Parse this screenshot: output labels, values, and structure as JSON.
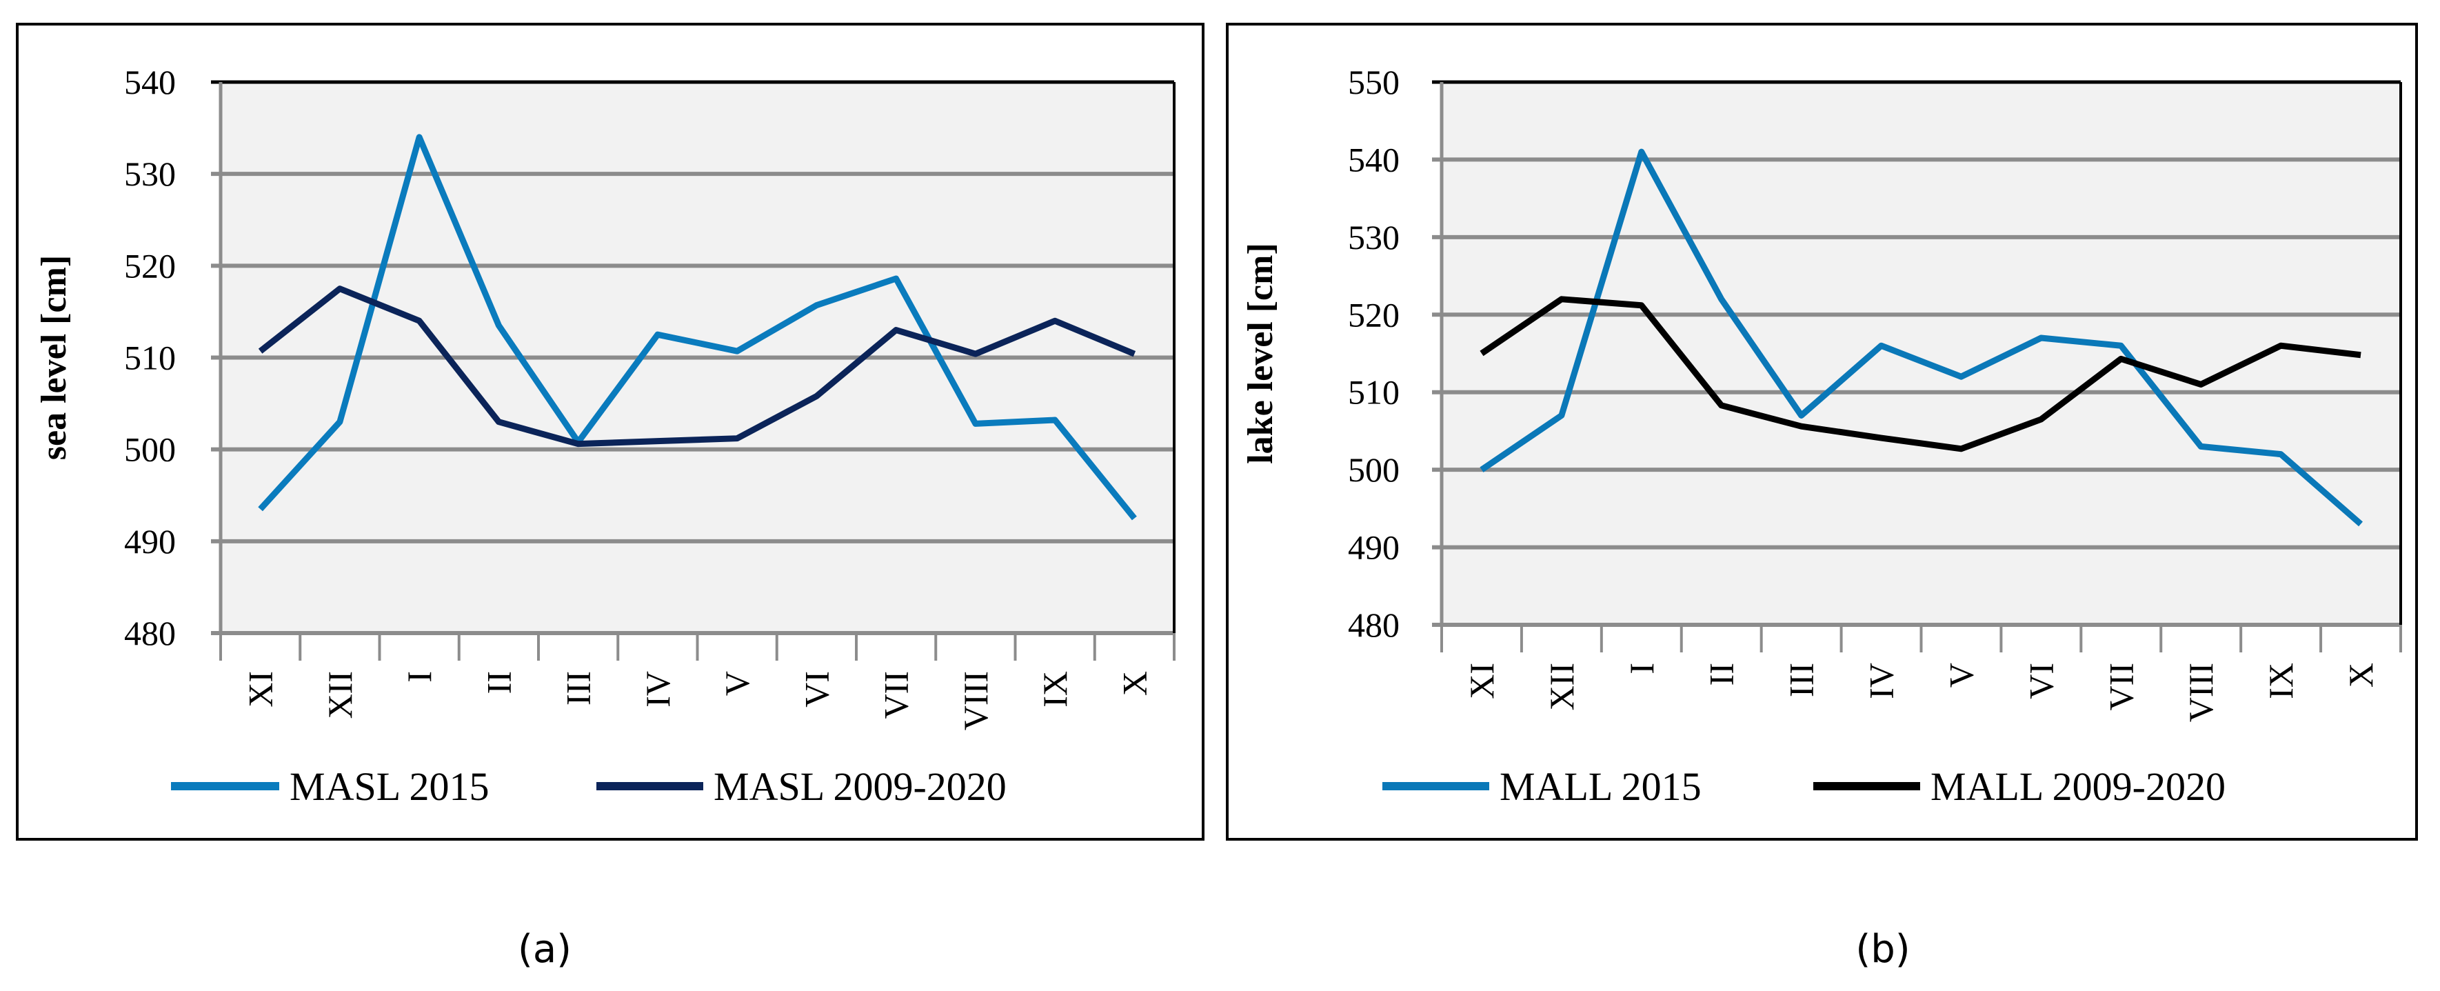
{
  "chart_data": [
    {
      "type": "line",
      "panel": "(a)",
      "categories": [
        "XI",
        "XII",
        "I",
        "II",
        "III",
        "IV",
        "V",
        "VI",
        "VII",
        "VIII",
        "IX",
        "X"
      ],
      "ylabel": "sea level [cm]",
      "ylim": [
        480,
        540
      ],
      "yticks": [
        "480",
        "490",
        "500",
        "510",
        "520",
        "530",
        "540"
      ],
      "grid": true,
      "legend": "bottom",
      "series": [
        {
          "name": "MASL 2015",
          "color": "#0a7bbd",
          "values": [
            493.5,
            503,
            534,
            513.5,
            500.8,
            512.5,
            510.7,
            515.7,
            518.6,
            502.8,
            503.2,
            492.5
          ]
        },
        {
          "name": "MASL 2009-2020",
          "color": "#0b2459",
          "values": [
            510.7,
            517.5,
            514,
            503,
            500.6,
            500.9,
            501.2,
            505.8,
            513,
            510.4,
            514,
            510.4
          ]
        }
      ]
    },
    {
      "type": "line",
      "panel": "(b)",
      "categories": [
        "XI",
        "XII",
        "I",
        "II",
        "III",
        "IV",
        "V",
        "VI",
        "VII",
        "VIII",
        "IX",
        "X"
      ],
      "ylabel": "lake level [cm]",
      "ylim": [
        480,
        550
      ],
      "yticks": [
        "480",
        "490",
        "500",
        "510",
        "520",
        "530",
        "540",
        "550"
      ],
      "grid": true,
      "legend": "bottom",
      "series": [
        {
          "name": "MALL 2015",
          "color": "#0a78b8",
          "values": [
            500,
            507,
            541,
            522,
            507,
            516,
            512,
            517,
            516,
            503,
            502,
            493
          ]
        },
        {
          "name": "MALL 2009-2020",
          "color": "#000000",
          "values": [
            515,
            522,
            521.2,
            508.3,
            505.6,
            504.1,
            502.7,
            506.5,
            514.3,
            511,
            516,
            514.8
          ]
        }
      ]
    }
  ]
}
